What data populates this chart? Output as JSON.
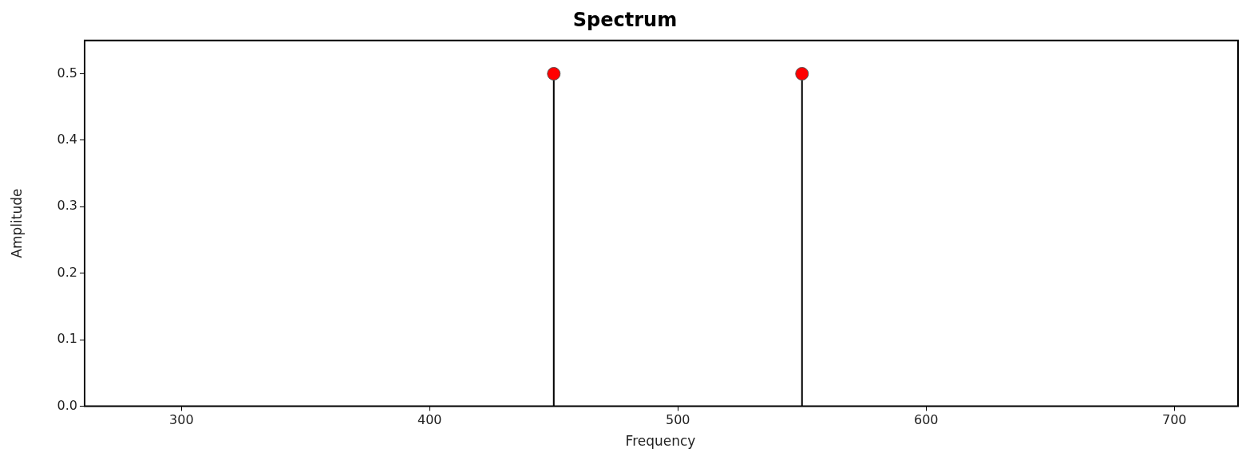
{
  "chart_data": {
    "type": "lollipop",
    "title": "Spectrum",
    "xlabel": "Frequency",
    "ylabel": "Amplitude",
    "x": [
      450,
      550
    ],
    "series": [
      {
        "color": "#ff0000",
        "values": [
          0.5,
          0.5
        ]
      }
    ],
    "xlim": [
      261,
      725
    ],
    "xticks": [
      300,
      400,
      500,
      600,
      700
    ],
    "ylim": [
      0,
      0.55
    ],
    "yticks": [
      {
        "value": 0,
        "label": "0.0"
      },
      0.1,
      0.2,
      0.3,
      0.4,
      0.5
    ],
    "grid": false,
    "legend": false,
    "marker": "circle"
  }
}
